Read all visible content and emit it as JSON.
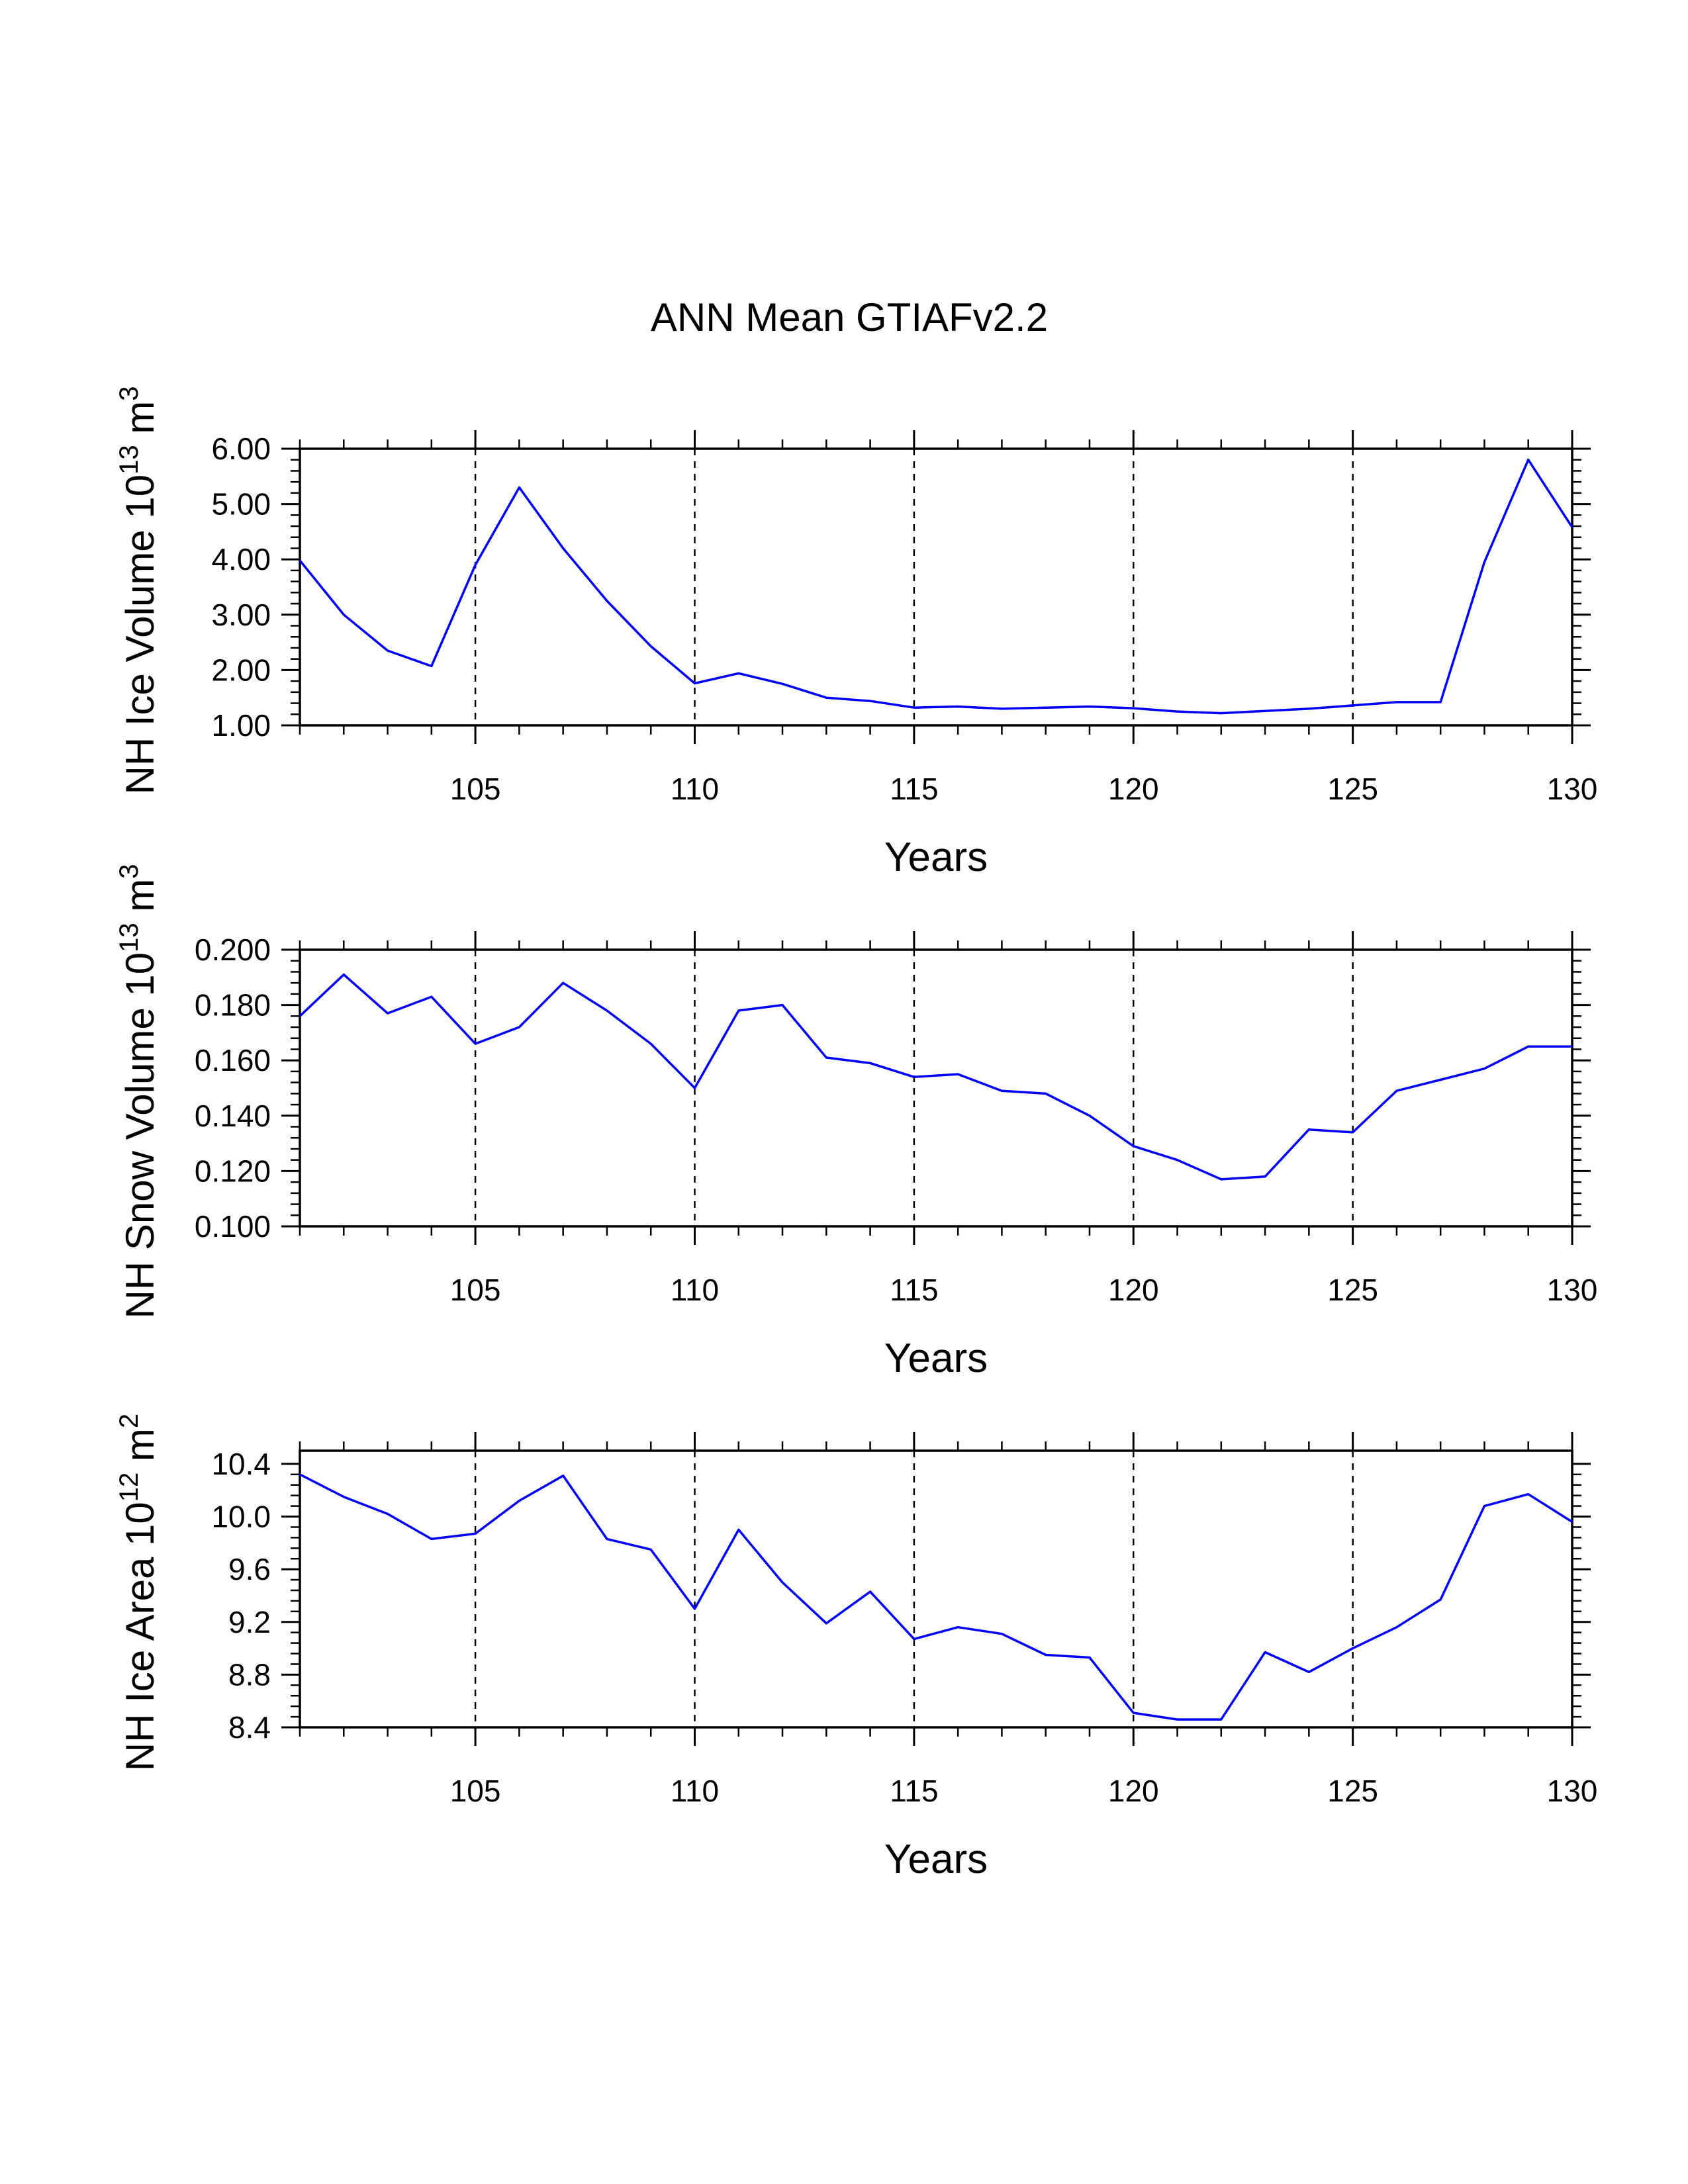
{
  "title": "ANN Mean GTIAFv2.2",
  "line_color": "#0000ff",
  "chart_data": [
    {
      "type": "line",
      "ylabel_main": "NH Ice Volume 10",
      "ylabel_exp": "13",
      "ylabel_unit": " m",
      "ylabel_unit_exp": "3",
      "xlabel": "Years",
      "xlim": [
        101,
        130
      ],
      "ylim": [
        1.0,
        6.0
      ],
      "yticks": [
        "1.00",
        "2.00",
        "3.00",
        "4.00",
        "5.00",
        "6.00"
      ],
      "xticks": [
        "105",
        "110",
        "115",
        "120",
        "125",
        "130"
      ],
      "grid_x": [
        105,
        110,
        115,
        120,
        125
      ],
      "x": [
        101,
        102,
        103,
        104,
        105,
        106,
        107,
        108,
        109,
        110,
        111,
        112,
        113,
        114,
        115,
        116,
        117,
        118,
        119,
        120,
        121,
        122,
        123,
        124,
        125,
        126,
        127,
        128,
        129,
        130
      ],
      "y": [
        3.98,
        3.0,
        2.35,
        2.07,
        3.9,
        5.3,
        4.2,
        3.25,
        2.43,
        1.76,
        1.94,
        1.75,
        1.5,
        1.44,
        1.32,
        1.34,
        1.3,
        1.32,
        1.34,
        1.31,
        1.25,
        1.22,
        1.26,
        1.3,
        1.36,
        1.42,
        1.42,
        3.95,
        5.8,
        4.58
      ]
    },
    {
      "type": "line",
      "ylabel_main": "NH Snow Volume 10",
      "ylabel_exp": "13",
      "ylabel_unit": " m",
      "ylabel_unit_exp": "3",
      "xlabel": "Years",
      "xlim": [
        101,
        130
      ],
      "ylim": [
        0.1,
        0.2
      ],
      "yticks": [
        "0.100",
        "0.120",
        "0.140",
        "0.160",
        "0.180",
        "0.200"
      ],
      "xticks": [
        "105",
        "110",
        "115",
        "120",
        "125",
        "130"
      ],
      "grid_x": [
        105,
        110,
        115,
        120,
        125
      ],
      "x": [
        101,
        102,
        103,
        104,
        105,
        106,
        107,
        108,
        109,
        110,
        111,
        112,
        113,
        114,
        115,
        116,
        117,
        118,
        119,
        120,
        121,
        122,
        123,
        124,
        125,
        126,
        127,
        128,
        129,
        130
      ],
      "y": [
        0.176,
        0.191,
        0.177,
        0.183,
        0.166,
        0.172,
        0.188,
        0.178,
        0.166,
        0.15,
        0.178,
        0.18,
        0.161,
        0.159,
        0.154,
        0.155,
        0.149,
        0.148,
        0.14,
        0.129,
        0.124,
        0.117,
        0.118,
        0.135,
        0.134,
        0.149,
        0.153,
        0.157,
        0.165,
        0.165
      ]
    },
    {
      "type": "line",
      "ylabel_main": "NH Ice Area 10",
      "ylabel_exp": "12",
      "ylabel_unit": " m",
      "ylabel_unit_exp": "2",
      "xlabel": "Years",
      "xlim": [
        101,
        130
      ],
      "ylim": [
        8.4,
        10.5
      ],
      "yticks": [
        "8.4",
        "8.8",
        "9.2",
        "9.6",
        "10.0",
        "10.4"
      ],
      "xticks": [
        "105",
        "110",
        "115",
        "120",
        "125",
        "130"
      ],
      "grid_x": [
        105,
        110,
        115,
        120,
        125
      ],
      "x": [
        101,
        102,
        103,
        104,
        105,
        106,
        107,
        108,
        109,
        110,
        111,
        112,
        113,
        114,
        115,
        116,
        117,
        118,
        119,
        120,
        121,
        122,
        123,
        124,
        125,
        126,
        127,
        128,
        129,
        130
      ],
      "y": [
        10.32,
        10.15,
        10.02,
        9.83,
        9.87,
        10.12,
        10.31,
        9.83,
        9.75,
        9.3,
        9.9,
        9.5,
        9.19,
        9.43,
        9.07,
        9.16,
        9.11,
        8.95,
        8.93,
        8.51,
        8.46,
        8.46,
        8.97,
        8.82,
        9.0,
        9.16,
        9.37,
        10.08,
        10.17,
        9.96
      ]
    }
  ]
}
